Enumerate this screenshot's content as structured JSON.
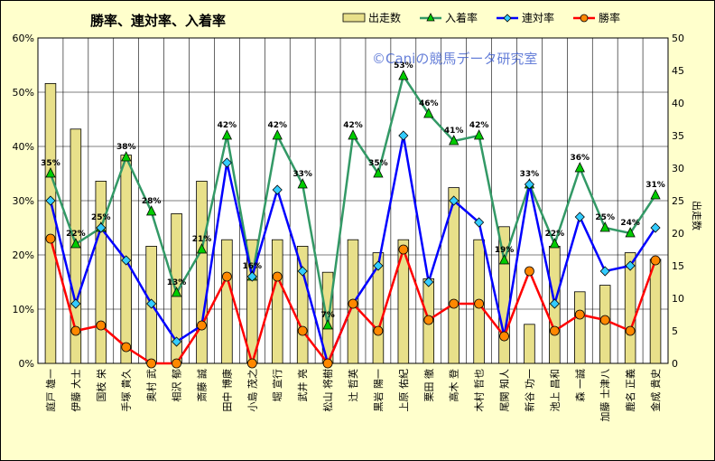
{
  "chart_data": {
    "type": "bar+line",
    "title": "勝率、連対率、入着率",
    "watermark": "©Caniの競馬データ研究室",
    "y2label": "出走数",
    "ylim_left": [
      0,
      60
    ],
    "ylim_right": [
      0,
      50
    ],
    "left_ticks": [
      "0%",
      "10%",
      "20%",
      "30%",
      "40%",
      "50%",
      "60%"
    ],
    "right_ticks": [
      "0",
      "5",
      "10",
      "15",
      "20",
      "25",
      "30",
      "35",
      "40",
      "45",
      "50"
    ],
    "grid": true,
    "legend_position": "top",
    "categories": [
      "庭戸 雄一",
      "伊藤 大士",
      "国枝 栄",
      "手塚 貴久",
      "奥村 武",
      "相沢 郁",
      "斎藤 誠",
      "田中 博康",
      "小島 茂之",
      "堀 宣行",
      "武井 亮",
      "松山 将樹",
      "辻 哲英",
      "黒岩 陽一",
      "上原 佑紀",
      "栗田 徹",
      "高木 登",
      "木村 哲也",
      "尾関 知人",
      "新谷 功一",
      "池上 昌和",
      "森 一誠",
      "加藤 士津八",
      "鹿名 正義",
      "金成 貴史"
    ],
    "series": [
      {
        "name": "出走数",
        "axis": "right",
        "kind": "bar",
        "color": "#e8e08a",
        "values": [
          43,
          36,
          28,
          32,
          18,
          23,
          28,
          19,
          19,
          19,
          18,
          14,
          19,
          17,
          19,
          13,
          27,
          19,
          21,
          6,
          18,
          11,
          12,
          17,
          16
        ]
      },
      {
        "name": "入着率",
        "axis": "left",
        "kind": "line",
        "color": "#339966",
        "marker": "triangle",
        "marker_color": "#00cc00",
        "values": [
          35,
          22,
          25,
          38,
          28,
          13,
          21,
          42,
          16,
          42,
          33,
          7,
          42,
          35,
          53,
          46,
          41,
          42,
          19,
          33,
          22,
          36,
          25,
          24,
          31
        ],
        "labels": [
          "35%",
          "22%",
          "25%",
          "38%",
          "28%",
          "13%",
          "21%",
          "42%",
          "16%",
          "42%",
          "33%",
          "7%",
          "42%",
          "35%",
          "53%",
          "46%",
          "41%",
          "42%",
          "19%",
          "33%",
          "22%",
          "36%",
          "25%",
          "24%",
          "31%"
        ]
      },
      {
        "name": "連対率",
        "axis": "left",
        "kind": "line",
        "color": "#0000ff",
        "marker": "diamond",
        "marker_color": "#33ccff",
        "values": [
          30,
          11,
          25,
          19,
          11,
          4,
          7,
          37,
          16,
          32,
          17,
          0,
          11,
          18,
          42,
          15,
          30,
          26,
          5,
          33,
          11,
          27,
          17,
          18,
          25
        ]
      },
      {
        "name": "勝率",
        "axis": "left",
        "kind": "line",
        "color": "#ff0000",
        "marker": "circle",
        "marker_color": "#ff8800",
        "values": [
          23,
          6,
          7,
          3,
          0,
          0,
          7,
          16,
          0,
          16,
          6,
          0,
          11,
          6,
          21,
          8,
          11,
          11,
          5,
          17,
          6,
          9,
          8,
          6,
          19
        ]
      }
    ]
  }
}
